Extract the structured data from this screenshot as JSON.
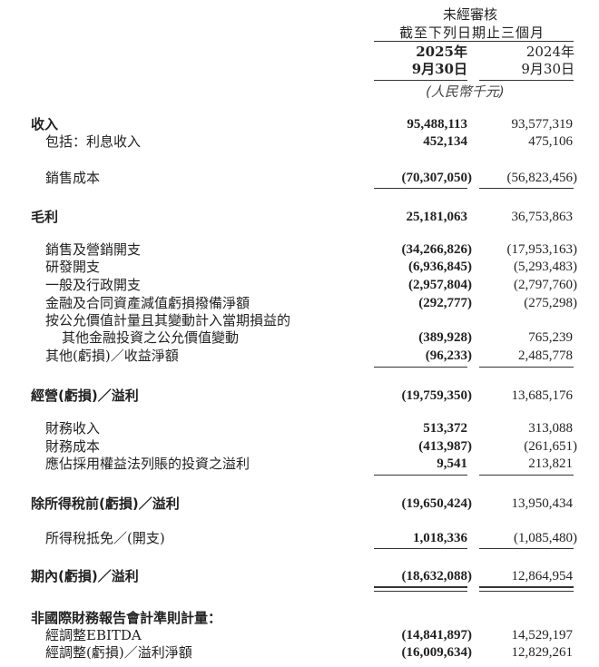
{
  "header": {
    "audit_status": "未經審核",
    "period": "截至下列日期止三個月",
    "col_2025_year": "2025年",
    "col_2025_date": "9月30日",
    "col_2024_year": "2024年",
    "col_2024_date": "9月30日",
    "currency_unit": "(人民幣千元)"
  },
  "rows": [
    {
      "label": "收入",
      "v2025": "95,488,113",
      "v2024": "93,577,319"
    },
    {
      "label": "包括：利息收入",
      "v2025": "452,134",
      "v2024": "475,106"
    },
    {
      "label": "銷售成本",
      "v2025": "(70,307,050)",
      "v2024": "(56,823,456)"
    },
    {
      "label": "毛利",
      "v2025": "25,181,063",
      "v2024": "36,753,863"
    },
    {
      "label": "銷售及營銷開支",
      "v2025": "(34,266,826)",
      "v2024": "(17,953,163)"
    },
    {
      "label": "研發開支",
      "v2025": "(6,936,845)",
      "v2024": "(5,293,483)"
    },
    {
      "label": "一般及行政開支",
      "v2025": "(2,957,804)",
      "v2024": "(2,797,760)"
    },
    {
      "label": "金融及合同資產減值虧損撥備淨額",
      "v2025": "(292,777)",
      "v2024": "(275,298)"
    },
    {
      "label": "按公允價值計量且其變動計入當期損益的"
    },
    {
      "label": "其他金融投資之公允價值變動",
      "v2025": "(389,928)",
      "v2024": "765,239"
    },
    {
      "label": "其他(虧損)／收益淨額",
      "v2025": "(96,233)",
      "v2024": "2,485,778"
    },
    {
      "label": "經營(虧損)／溢利",
      "v2025": "(19,759,350)",
      "v2024": "13,685,176"
    },
    {
      "label": "財務收入",
      "v2025": "513,372",
      "v2024": "313,088"
    },
    {
      "label": "財務成本",
      "v2025": "(413,987)",
      "v2024": "(261,651)"
    },
    {
      "label": "應佔採用權益法列賬的投資之溢利",
      "v2025": "9,541",
      "v2024": "213,821"
    },
    {
      "label": "除所得稅前(虧損)／溢利",
      "v2025": "(19,650,424)",
      "v2024": "13,950,434"
    },
    {
      "label": "所得稅抵免／(開支)",
      "v2025": "1,018,336",
      "v2024": "(1,085,480)"
    },
    {
      "label": "期內(虧損)／溢利",
      "v2025": "(18,632,088)",
      "v2024": "12,864,954"
    },
    {
      "label": "非國際財務報告會計準則計量："
    },
    {
      "label": "經調整EBITDA",
      "v2025": "(14,841,897)",
      "v2024": "14,529,197"
    },
    {
      "label": "經調整(虧損)／溢利淨額",
      "v2025": "(16,009,634)",
      "v2024": "12,829,261"
    }
  ]
}
